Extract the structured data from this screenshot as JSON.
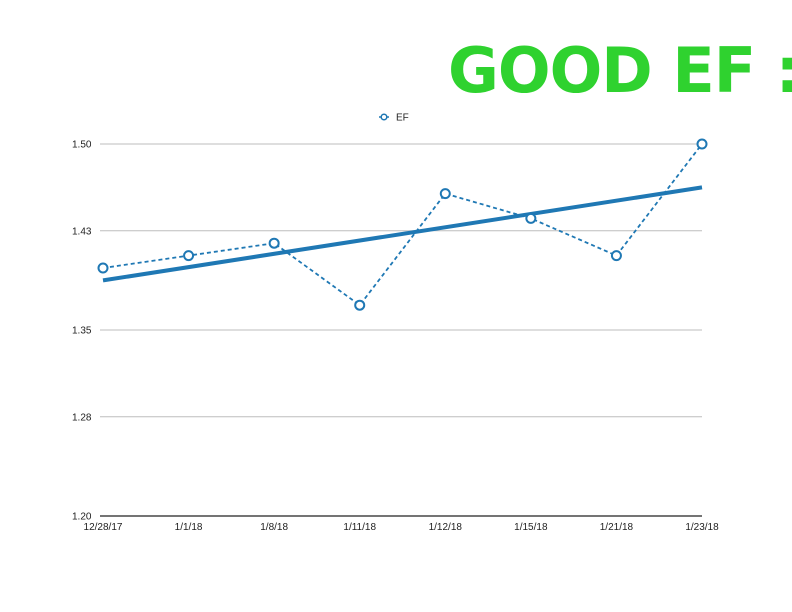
{
  "headline": {
    "text": "GOOD EF :)",
    "color": "#2fd22f"
  },
  "chart_data": {
    "type": "line",
    "categories": [
      "12/28/17",
      "1/1/18",
      "1/8/18",
      "1/11/18",
      "1/12/18",
      "1/15/18",
      "1/21/18",
      "1/23/18"
    ],
    "series": [
      {
        "name": "EF",
        "values": [
          1.4,
          1.41,
          1.42,
          1.37,
          1.46,
          1.44,
          1.41,
          1.5
        ],
        "color": "#1f78b4",
        "line_style": "dashed",
        "marker": "hollow-circle"
      }
    ],
    "trendline": {
      "values": [
        1.39,
        1.465
      ],
      "color": "#1f78b4",
      "style": "solid"
    },
    "yticks": [
      1.2,
      1.28,
      1.35,
      1.43,
      1.5
    ],
    "ytick_labels": [
      "1.20",
      "1.28",
      "1.35",
      "1.43",
      "1.50"
    ],
    "ylim": [
      1.2,
      1.5
    ],
    "grid": true,
    "legend_position": "top-center",
    "title": "",
    "xlabel": "",
    "ylabel": ""
  }
}
